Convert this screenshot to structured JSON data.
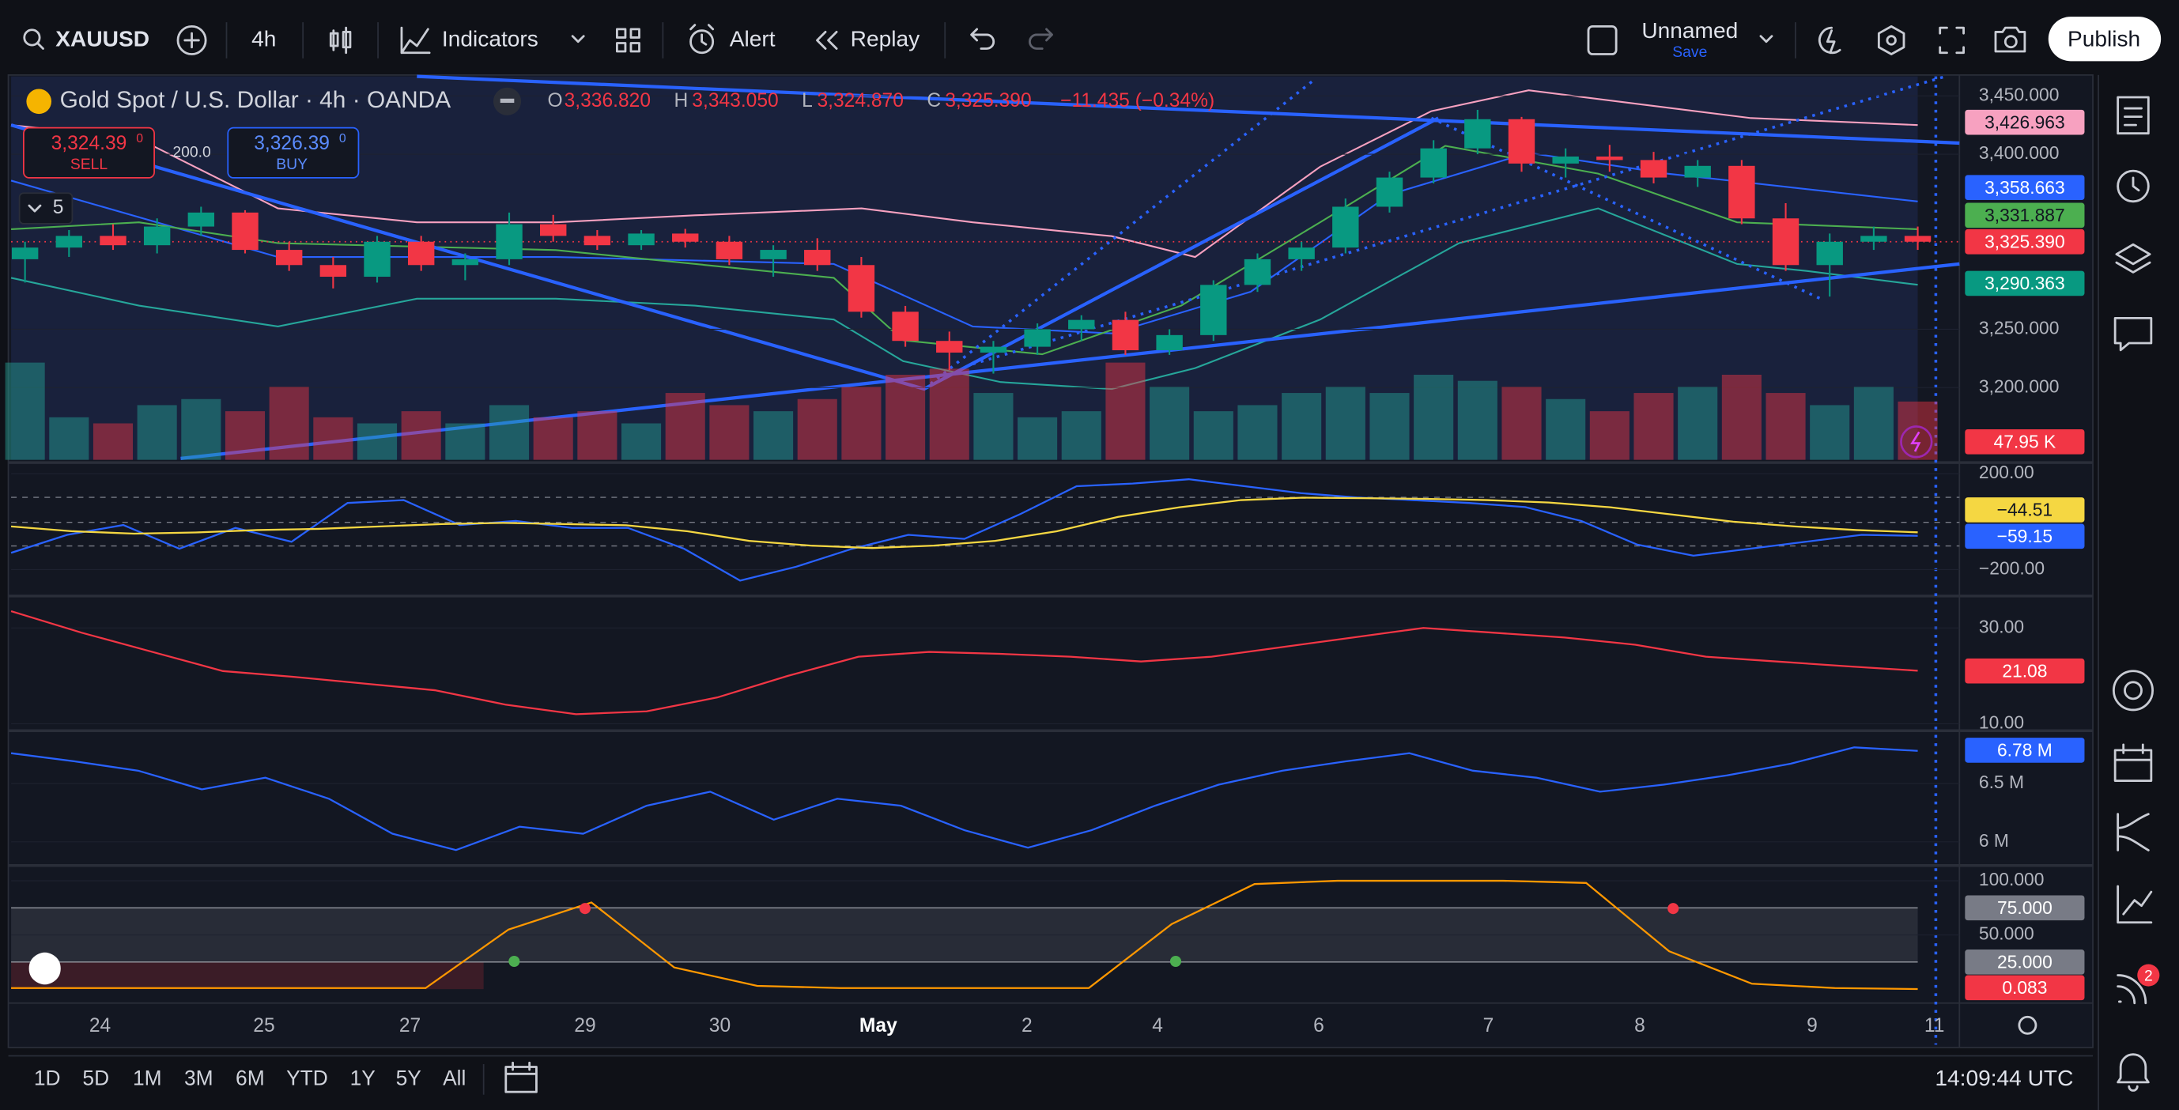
{
  "toolbar": {
    "symbol": "XAUUSD",
    "interval": "4h",
    "indicators": "Indicators",
    "alert": "Alert",
    "replay": "Replay",
    "layout_name": "Unnamed",
    "save": "Save",
    "publish": "Publish"
  },
  "legend": {
    "title": "Gold Spot / U.S. Dollar · 4h · OANDA",
    "open_label": "O",
    "open": "3,336.820",
    "high_label": "H",
    "high": "3,343.050",
    "low_label": "L",
    "low": "3,324.870",
    "close_label": "C",
    "close": "3,325.390",
    "change": "−11.435 (−0.34%)"
  },
  "trade": {
    "sell_price": "3,324.39",
    "sell_sup": "0",
    "sell": "SELL",
    "spread": "200.0",
    "buy_price": "3,326.39",
    "buy_sup": "0",
    "buy": "BUY"
  },
  "indicator_count": "5",
  "chart_data": {
    "type": "candlestick",
    "candles": [
      [
        3310,
        3325,
        3290,
        3320
      ],
      [
        3320,
        3335,
        3312,
        3330
      ],
      [
        3330,
        3340,
        3318,
        3322
      ],
      [
        3322,
        3345,
        3315,
        3338
      ],
      [
        3338,
        3355,
        3330,
        3350
      ],
      [
        3350,
        3352,
        3315,
        3318
      ],
      [
        3318,
        3325,
        3300,
        3305
      ],
      [
        3305,
        3312,
        3285,
        3295
      ],
      [
        3295,
        3330,
        3290,
        3325
      ],
      [
        3325,
        3330,
        3300,
        3305
      ],
      [
        3305,
        3315,
        3292,
        3310
      ],
      [
        3310,
        3350,
        3305,
        3340
      ],
      [
        3340,
        3348,
        3325,
        3330
      ],
      [
        3330,
        3335,
        3318,
        3322
      ],
      [
        3322,
        3335,
        3318,
        3332
      ],
      [
        3332,
        3336,
        3320,
        3325
      ],
      [
        3325,
        3330,
        3305,
        3310
      ],
      [
        3310,
        3322,
        3295,
        3318
      ],
      [
        3318,
        3328,
        3300,
        3305
      ],
      [
        3305,
        3312,
        3260,
        3265
      ],
      [
        3265,
        3270,
        3235,
        3240
      ],
      [
        3240,
        3248,
        3215,
        3230
      ],
      [
        3230,
        3240,
        3212,
        3235
      ],
      [
        3235,
        3255,
        3228,
        3250
      ],
      [
        3250,
        3262,
        3240,
        3258
      ],
      [
        3258,
        3265,
        3228,
        3232
      ],
      [
        3232,
        3250,
        3228,
        3245
      ],
      [
        3245,
        3292,
        3240,
        3288
      ],
      [
        3288,
        3315,
        3282,
        3310
      ],
      [
        3310,
        3325,
        3300,
        3320
      ],
      [
        3320,
        3362,
        3315,
        3355
      ],
      [
        3355,
        3385,
        3350,
        3380
      ],
      [
        3380,
        3412,
        3375,
        3405
      ],
      [
        3405,
        3438,
        3400,
        3430
      ],
      [
        3430,
        3432,
        3385,
        3392
      ],
      [
        3392,
        3405,
        3380,
        3398
      ],
      [
        3398,
        3408,
        3385,
        3395
      ],
      [
        3395,
        3402,
        3375,
        3380
      ],
      [
        3380,
        3395,
        3372,
        3390
      ],
      [
        3390,
        3395,
        3340,
        3345
      ],
      [
        3345,
        3358,
        3300,
        3305
      ],
      [
        3305,
        3332,
        3278,
        3325
      ],
      [
        3325,
        3338,
        3318,
        3330
      ],
      [
        3330,
        3338,
        3318,
        3325
      ]
    ],
    "volumes": [
      80,
      35,
      30,
      45,
      50,
      40,
      60,
      35,
      30,
      40,
      30,
      45,
      35,
      40,
      30,
      55,
      45,
      40,
      50,
      60,
      70,
      75,
      55,
      35,
      40,
      80,
      60,
      40,
      45,
      55,
      60,
      55,
      70,
      65,
      60,
      50,
      40,
      55,
      60,
      70,
      55,
      45,
      60,
      47.95
    ],
    "yticks": [
      {
        "value": 3450,
        "label": "3,450.000"
      },
      {
        "value": 3400,
        "label": "3,400.000"
      },
      {
        "value": 3250,
        "label": "3,250.000"
      },
      {
        "value": 3200,
        "label": "3,200.000"
      }
    ],
    "price_badges": [
      {
        "label": "3,426.963",
        "color": "#f7a1c0",
        "text": "#131722"
      },
      {
        "label": "3,358.663",
        "color": "#2962ff",
        "text": "#ffffff"
      },
      {
        "label": "3,331.887",
        "color": "#4caf50",
        "text": "#131722"
      },
      {
        "label": "3,325.390",
        "color": "#f23645",
        "text": "#ffffff"
      },
      {
        "label": "3,290.363",
        "color": "#089981",
        "text": "#ffffff"
      },
      {
        "label": "47.95 K",
        "color": "#f23645",
        "text": "#ffffff"
      }
    ],
    "cci": {
      "ticks": [
        {
          "value": 200,
          "label": "200.00"
        },
        {
          "value": -200,
          "label": "−200.00"
        }
      ],
      "series": [
        {
          "color": "#2962ff",
          "values": [
            -130,
            -55,
            -14,
            -113,
            -26,
            -84,
            78,
            90,
            -14,
            3,
            -26,
            -26,
            -113,
            -246,
            -188,
            -113,
            -55,
            -72,
            32,
            148,
            159,
            177,
            148,
            119,
            101,
            90,
            78,
            61,
            3,
            -96,
            -142,
            -113,
            -84,
            -55,
            -59.15
          ]
        },
        {
          "color": "#f5d742",
          "values": [
            -20,
            -40,
            -50,
            -45,
            -35,
            -30,
            -20,
            -10,
            -5,
            -10,
            -15,
            -40,
            -80,
            -100,
            -110,
            -100,
            -80,
            -40,
            20,
            60,
            90,
            100,
            98,
            95,
            90,
            80,
            60,
            30,
            0,
            -20,
            -35,
            -44.51
          ]
        }
      ],
      "badges": [
        {
          "label": "−44.51",
          "color": "#f5d742",
          "text": "#131722"
        },
        {
          "label": "−59.15",
          "color": "#2962ff",
          "text": "#ffffff"
        }
      ]
    },
    "adx": {
      "ticks": [
        {
          "value": 30,
          "label": "30.00"
        },
        {
          "value": 10,
          "label": "10.00"
        }
      ],
      "series": [
        {
          "color": "#f23645",
          "values": [
            33.5,
            29,
            25,
            21,
            19.8,
            18.4,
            17,
            14,
            12,
            12.6,
            15.5,
            20,
            24,
            25,
            24.6,
            24,
            23,
            24,
            26,
            28,
            30,
            29,
            28,
            26.5,
            24,
            23,
            22,
            21.08
          ]
        }
      ],
      "badges": [
        {
          "label": "21.08",
          "color": "#f23645",
          "text": "#ffffff"
        }
      ]
    },
    "obv": {
      "ticks": [
        {
          "value": 6500000,
          "label": "6.5 M"
        },
        {
          "value": 6000000,
          "label": "6 M"
        }
      ],
      "series": [
        {
          "color": "#2962ff",
          "values": [
            6760000,
            6690000,
            6610000,
            6450000,
            6550000,
            6370000,
            6070000,
            5930000,
            6130000,
            6070000,
            6310000,
            6430000,
            6190000,
            6370000,
            6310000,
            6100000,
            5950000,
            6100000,
            6310000,
            6490000,
            6610000,
            6690000,
            6760000,
            6610000,
            6550000,
            6430000,
            6490000,
            6570000,
            6670000,
            6810000,
            6780000
          ]
        }
      ],
      "badges": [
        {
          "label": "6.78 M",
          "color": "#2962ff",
          "text": "#ffffff"
        }
      ]
    },
    "stoch": {
      "ticks": [
        {
          "value": 100,
          "label": "100.000"
        },
        {
          "value": 50,
          "label": "50.000"
        }
      ],
      "levels": [
        {
          "value": 75,
          "label": "75.000"
        },
        {
          "value": 25,
          "label": "25.000"
        }
      ],
      "series": [
        {
          "color": "#ff9800",
          "values": [
            1,
            1,
            1,
            1,
            1,
            1,
            55,
            80,
            20,
            3,
            1,
            1,
            1,
            1,
            60,
            97,
            100,
            100,
            100,
            98,
            35,
            5,
            1,
            0.083
          ]
        }
      ],
      "badges": [
        {
          "label": "0.083",
          "color": "#f23645",
          "text": "#ffffff"
        }
      ]
    },
    "dates": [
      "24",
      "25",
      "27",
      "29",
      "30",
      "May",
      "2",
      "4",
      "6",
      "7",
      "8",
      "9",
      "11"
    ]
  },
  "timeframes": [
    "1D",
    "5D",
    "1M",
    "3M",
    "6M",
    "YTD",
    "1Y",
    "5Y",
    "All"
  ],
  "clock": "14:09:44 UTC",
  "notification_count": "2"
}
